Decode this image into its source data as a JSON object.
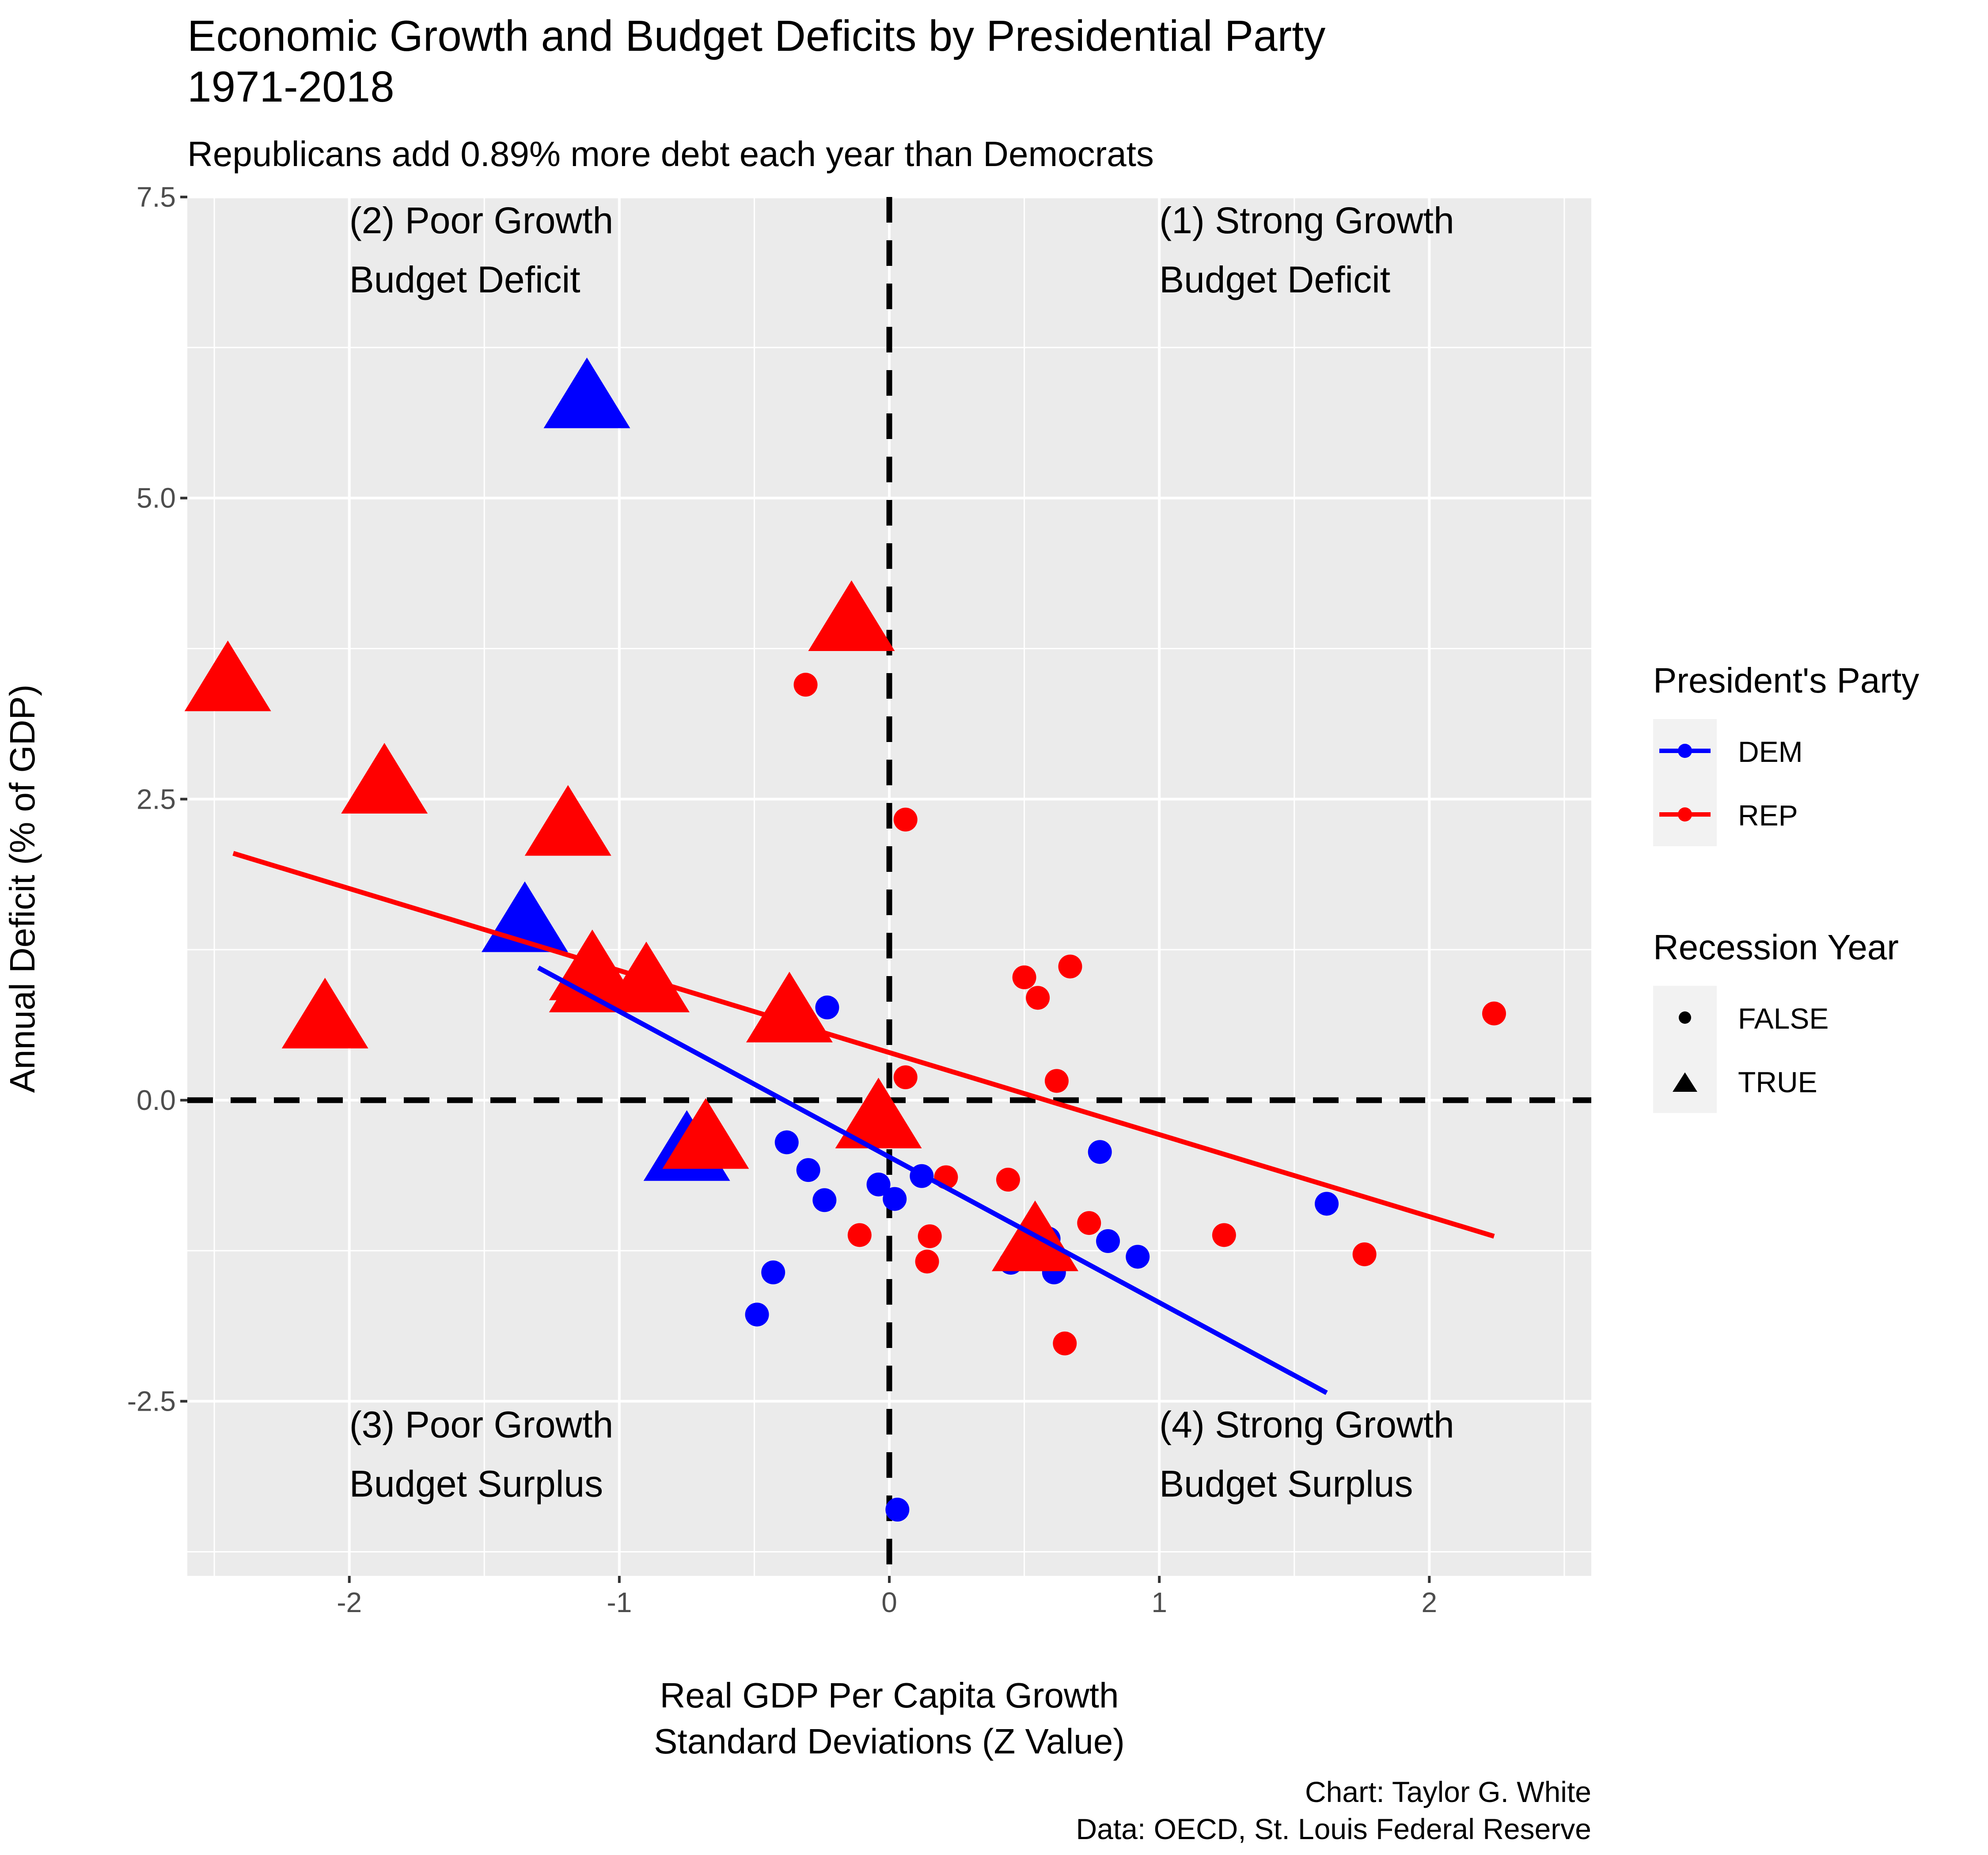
{
  "chart_data": {
    "type": "scatter",
    "title_line1": "Economic Growth and Budget Deficits by Presidential Party",
    "title_line2": "1971-2018",
    "subtitle": "Republicans add 0.89% more debt each year than Democrats",
    "xlabel_line1": "Real GDP Per Capita Growth",
    "xlabel_line2": "Standard Deviations (Z Value)",
    "ylabel": "Annual Deficit (% of GDP)",
    "caption_line1": "Chart: Taylor G. White",
    "caption_line2": "Data: OECD, St. Louis Federal Reserve",
    "xlim": [
      -2.6,
      2.6
    ],
    "ylim": [
      -3.95,
      7.5
    ],
    "x_ticks": [
      {
        "value": -2,
        "label": "-2"
      },
      {
        "value": -1,
        "label": "-1"
      },
      {
        "value": 0,
        "label": "0"
      },
      {
        "value": 1,
        "label": "1"
      },
      {
        "value": 2,
        "label": "2"
      }
    ],
    "y_ticks": [
      {
        "value": -2.5,
        "label": "-2.5"
      },
      {
        "value": 0,
        "label": "0.0"
      },
      {
        "value": 2.5,
        "label": "2.5"
      },
      {
        "value": 5,
        "label": "5.0"
      },
      {
        "value": 7.5,
        "label": "7.5"
      }
    ],
    "grid": true,
    "reference_lines": {
      "x": 0,
      "y": 0,
      "style": "dashed"
    },
    "quadrant_labels": [
      {
        "line1": "(1) Strong Growth",
        "line2": "Budget Deficit",
        "x": 1,
        "y": 7.2
      },
      {
        "line1": "(2) Poor Growth",
        "line2": "Budget Deficit",
        "x": -2,
        "y": 7.2
      },
      {
        "line1": "(3) Poor Growth",
        "line2": "Budget Surplus",
        "x": -2,
        "y": -2.8
      },
      {
        "line1": "(4) Strong Growth",
        "line2": "Budget Surplus",
        "x": 1,
        "y": -2.8
      }
    ],
    "legend": {
      "position": "right",
      "party_title": "President's Party",
      "party_items": [
        {
          "label": "DEM",
          "color": "#0000ff"
        },
        {
          "label": "REP",
          "color": "#ff0000"
        }
      ],
      "recession_title": "Recession Year",
      "recession_items": [
        {
          "label": "FALSE",
          "shape": "circle"
        },
        {
          "label": "TRUE",
          "shape": "triangle"
        }
      ]
    },
    "colors": {
      "DEM": "#0000ff",
      "REP": "#ff0000",
      "panel": "#ebebeb",
      "grid": "#ffffff",
      "reference": "#000000"
    },
    "series": [
      {
        "name": "DEM",
        "points": [
          {
            "x": -1.12,
            "y": 5.8,
            "recession": true
          },
          {
            "x": -1.35,
            "y": 1.45,
            "recession": true
          },
          {
            "x": -0.75,
            "y": -0.45,
            "recession": true
          },
          {
            "x": -0.23,
            "y": 0.77,
            "recession": false
          },
          {
            "x": -0.38,
            "y": -0.35,
            "recession": false
          },
          {
            "x": -0.3,
            "y": -0.58,
            "recession": false
          },
          {
            "x": -0.24,
            "y": -0.83,
            "recession": false
          },
          {
            "x": -0.04,
            "y": -0.7,
            "recession": false
          },
          {
            "x": 0.02,
            "y": -0.82,
            "recession": false
          },
          {
            "x": 0.12,
            "y": -0.63,
            "recession": false
          },
          {
            "x": -0.43,
            "y": -1.43,
            "recession": false
          },
          {
            "x": -0.49,
            "y": -1.78,
            "recession": false
          },
          {
            "x": 0.45,
            "y": -1.35,
            "recession": false
          },
          {
            "x": 0.59,
            "y": -1.15,
            "recession": false
          },
          {
            "x": 0.61,
            "y": -1.43,
            "recession": false
          },
          {
            "x": 0.78,
            "y": -0.43,
            "recession": false
          },
          {
            "x": 0.81,
            "y": -1.17,
            "recession": false
          },
          {
            "x": 0.92,
            "y": -1.3,
            "recession": false
          },
          {
            "x": 1.62,
            "y": -0.86,
            "recession": false
          },
          {
            "x": 0.03,
            "y": -3.4,
            "recession": false
          }
        ],
        "trend": {
          "x": [
            -1.3,
            1.62
          ],
          "y": [
            1.1,
            -2.43
          ]
        }
      },
      {
        "name": "REP",
        "points": [
          {
            "x": -2.45,
            "y": 3.45,
            "recession": true
          },
          {
            "x": -1.87,
            "y": 2.6,
            "recession": true
          },
          {
            "x": -2.09,
            "y": 0.65,
            "recession": true
          },
          {
            "x": -1.19,
            "y": 2.25,
            "recession": true
          },
          {
            "x": -1.1,
            "y": 1.05,
            "recession": true
          },
          {
            "x": -1.1,
            "y": 0.95,
            "recession": true
          },
          {
            "x": -0.9,
            "y": 0.95,
            "recession": true
          },
          {
            "x": -0.37,
            "y": 0.7,
            "recession": true
          },
          {
            "x": -0.68,
            "y": -0.35,
            "recession": true
          },
          {
            "x": -0.14,
            "y": 3.95,
            "recession": true
          },
          {
            "x": -0.04,
            "y": -0.18,
            "recession": true
          },
          {
            "x": 0.54,
            "y": -1.2,
            "recession": true
          },
          {
            "x": -0.31,
            "y": 3.45,
            "recession": false
          },
          {
            "x": 0.06,
            "y": 2.33,
            "recession": false
          },
          {
            "x": 0.06,
            "y": 0.19,
            "recession": false
          },
          {
            "x": 0.5,
            "y": 1.02,
            "recession": false
          },
          {
            "x": 0.55,
            "y": 0.85,
            "recession": false
          },
          {
            "x": 0.67,
            "y": 1.11,
            "recession": false
          },
          {
            "x": 0.62,
            "y": 0.16,
            "recession": false
          },
          {
            "x": 0.21,
            "y": -0.64,
            "recession": false
          },
          {
            "x": 0.44,
            "y": -0.66,
            "recession": false
          },
          {
            "x": -0.11,
            "y": -1.12,
            "recession": false
          },
          {
            "x": 0.15,
            "y": -1.13,
            "recession": false
          },
          {
            "x": 0.14,
            "y": -1.34,
            "recession": false
          },
          {
            "x": 0.74,
            "y": -1.02,
            "recession": false
          },
          {
            "x": 0.65,
            "y": -2.02,
            "recession": false
          },
          {
            "x": 1.24,
            "y": -1.12,
            "recession": false
          },
          {
            "x": 1.76,
            "y": -1.28,
            "recession": false
          },
          {
            "x": 2.24,
            "y": 0.72,
            "recession": false
          }
        ],
        "trend": {
          "x": [
            -2.43,
            2.24
          ],
          "y": [
            2.05,
            -1.13
          ]
        }
      }
    ]
  }
}
